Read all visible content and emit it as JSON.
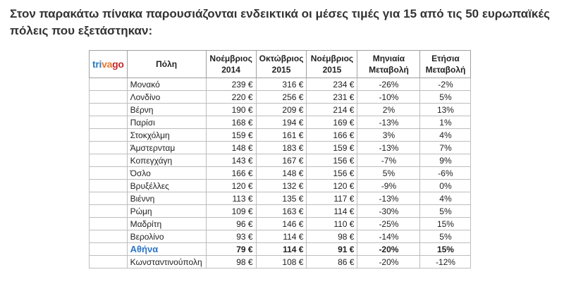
{
  "intro_text": "Στον παρακάτω πίνακα παρουσιάζονται ενδεικτικά οι μέσες τιμές για 15 από τις 50 ευρωπαϊκές πόλεις που εξετάστηκαν:",
  "logo": {
    "part1": "tri",
    "part2": "va",
    "part3": "go"
  },
  "colors": {
    "logo_blue": "#2a7ec1",
    "logo_orange": "#e8762c",
    "logo_red": "#c6272a",
    "highlight_city": "#2b73c9"
  },
  "headers": {
    "city": "Πόλη",
    "nov2014": [
      "Νοέμβριος",
      "2014"
    ],
    "oct2015": [
      "Οκτώβριος",
      "2015"
    ],
    "nov2015": [
      "Νοέμβριος",
      "2015"
    ],
    "monthly": [
      "Μηνιαία",
      "Μεταβολή"
    ],
    "yearly": [
      "Ετήσια",
      "Μεταβολή"
    ]
  },
  "rows": [
    {
      "city": "Μονακό",
      "nov2014": "239 €",
      "oct2015": "316 €",
      "nov2015": "234 €",
      "monthly": "-26%",
      "yearly": "-2%"
    },
    {
      "city": "Λονδίνο",
      "nov2014": "220 €",
      "oct2015": "256 €",
      "nov2015": "231 €",
      "monthly": "-10%",
      "yearly": "5%"
    },
    {
      "city": "Βέρνη",
      "nov2014": "190 €",
      "oct2015": "209 €",
      "nov2015": "214 €",
      "monthly": "2%",
      "yearly": "13%"
    },
    {
      "city": "Παρίσι",
      "nov2014": "168 €",
      "oct2015": "194 €",
      "nov2015": "169 €",
      "monthly": "-13%",
      "yearly": "1%"
    },
    {
      "city": "Στοκχόλμη",
      "nov2014": "159 €",
      "oct2015": "161 €",
      "nov2015": "166 €",
      "monthly": "3%",
      "yearly": "4%"
    },
    {
      "city": "Άμστερνταμ",
      "nov2014": "148 €",
      "oct2015": "183 €",
      "nov2015": "159 €",
      "monthly": "-13%",
      "yearly": "7%"
    },
    {
      "city": "Κοπεγχάγη",
      "nov2014": "143 €",
      "oct2015": "167 €",
      "nov2015": "156 €",
      "monthly": "-7%",
      "yearly": "9%"
    },
    {
      "city": "Όσλο",
      "nov2014": "166 €",
      "oct2015": "148 €",
      "nov2015": "156 €",
      "monthly": "5%",
      "yearly": "-6%"
    },
    {
      "city": "Βρυξέλλες",
      "nov2014": "120 €",
      "oct2015": "132 €",
      "nov2015": "120 €",
      "monthly": "-9%",
      "yearly": "0%"
    },
    {
      "city": "Βιέννη",
      "nov2014": "113 €",
      "oct2015": "135 €",
      "nov2015": "117 €",
      "monthly": "-13%",
      "yearly": "4%"
    },
    {
      "city": "Ρώμη",
      "nov2014": "109 €",
      "oct2015": "163 €",
      "nov2015": "114 €",
      "monthly": "-30%",
      "yearly": "5%"
    },
    {
      "city": "Μαδρίτη",
      "nov2014": "96 €",
      "oct2015": "146 €",
      "nov2015": "110 €",
      "monthly": "-25%",
      "yearly": "15%"
    },
    {
      "city": "Βερολίνο",
      "nov2014": "93 €",
      "oct2015": "114 €",
      "nov2015": "98 €",
      "monthly": "-14%",
      "yearly": "5%"
    },
    {
      "city": "Αθήνα",
      "nov2014": "79 €",
      "oct2015": "114 €",
      "nov2015": "91 €",
      "monthly": "-20%",
      "yearly": "15%",
      "highlight": true
    },
    {
      "city": "Κωνσταντινούπολη",
      "nov2014": "98 €",
      "oct2015": "108 €",
      "nov2015": "86 €",
      "monthly": "-20%",
      "yearly": "-12%"
    }
  ]
}
